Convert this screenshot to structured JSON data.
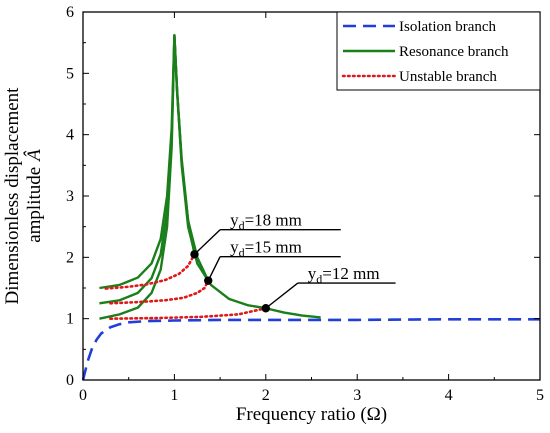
{
  "chart_data": {
    "type": "line",
    "title": "",
    "xlabel": "Frequency ratio (Ω)",
    "ylabel_line1": "Dimensionless displacement",
    "ylabel_line2": "amplitude",
    "ylabel_symbol": "Â",
    "xlim": [
      0,
      5
    ],
    "ylim": [
      0,
      6
    ],
    "xticks": [
      "0",
      "1",
      "2",
      "3",
      "4",
      "5"
    ],
    "yticks": [
      "0",
      "1",
      "2",
      "3",
      "4",
      "5",
      "6"
    ],
    "grid": false,
    "legend_position": "top-right",
    "legend": [
      {
        "label": "Isolation branch",
        "style": "dashed",
        "color": "#1f3fd8"
      },
      {
        "label": "Resonance branch",
        "style": "solid",
        "color": "#1a7f1a"
      },
      {
        "label": "Unstable branch",
        "style": "dotted",
        "color": "#e01818"
      }
    ],
    "series": [
      {
        "name": "Isolation branch",
        "style": "dashed",
        "color": "#1f3fd8",
        "x": [
          0.0,
          0.05,
          0.1,
          0.15,
          0.2,
          0.3,
          0.4,
          0.5,
          0.7,
          1.0,
          1.5,
          2.0,
          3.0,
          4.0,
          5.0
        ],
        "y": [
          0.0,
          0.3,
          0.52,
          0.66,
          0.76,
          0.86,
          0.91,
          0.94,
          0.96,
          0.97,
          0.98,
          0.98,
          0.98,
          0.99,
          0.99
        ]
      },
      {
        "name": "Resonance branch",
        "style": "solid",
        "color": "#1a7f1a",
        "x": [
          0.18,
          0.4,
          0.6,
          0.75,
          0.85,
          0.92,
          0.97,
          1.0,
          1.03,
          1.08,
          1.15,
          1.25,
          1.4,
          1.6,
          1.8,
          2.0,
          2.2,
          2.4,
          2.6
        ],
        "y": [
          1.0,
          1.07,
          1.18,
          1.42,
          1.8,
          2.5,
          3.8,
          5.62,
          4.7,
          3.5,
          2.5,
          1.9,
          1.55,
          1.32,
          1.22,
          1.17,
          1.1,
          1.05,
          1.02
        ]
      },
      {
        "name": "Resonance branch (y_d = 15 mm)",
        "style": "solid",
        "color": "#1a7f1a",
        "x": [
          0.18,
          0.4,
          0.6,
          0.75,
          0.85,
          0.92,
          0.97,
          1.0,
          1.03,
          1.08,
          1.15,
          1.25,
          1.37
        ],
        "y": [
          1.25,
          1.3,
          1.42,
          1.66,
          2.05,
          2.75,
          3.9,
          5.62,
          4.7,
          3.55,
          2.6,
          2.0,
          1.62
        ]
      },
      {
        "name": "Resonance branch (y_d = 18 mm)",
        "style": "solid",
        "color": "#1a7f1a",
        "x": [
          0.18,
          0.4,
          0.6,
          0.75,
          0.85,
          0.92,
          0.97,
          1.0,
          1.03,
          1.08,
          1.15,
          1.22
        ],
        "y": [
          1.5,
          1.55,
          1.67,
          1.9,
          2.3,
          3.0,
          4.1,
          5.62,
          4.7,
          3.6,
          2.6,
          2.05
        ]
      },
      {
        "name": "Unstable branch (y_d = 18 mm)",
        "style": "dotted",
        "color": "#e01818",
        "x": [
          0.25,
          0.5,
          0.7,
          0.9,
          1.05,
          1.15,
          1.22
        ],
        "y": [
          1.49,
          1.52,
          1.56,
          1.63,
          1.73,
          1.86,
          2.05
        ]
      },
      {
        "name": "Unstable branch (y_d = 15 mm)",
        "style": "dotted",
        "color": "#e01818",
        "x": [
          0.3,
          0.6,
          0.9,
          1.1,
          1.25,
          1.33,
          1.37
        ],
        "y": [
          1.25,
          1.27,
          1.3,
          1.34,
          1.42,
          1.5,
          1.62
        ]
      },
      {
        "name": "Unstable branch (y_d = 12 mm)",
        "style": "dotted",
        "color": "#e01818",
        "x": [
          0.3,
          0.8,
          1.3,
          1.7,
          2.0
        ],
        "y": [
          1.0,
          1.01,
          1.03,
          1.07,
          1.17
        ]
      }
    ],
    "markers": [
      {
        "x": 1.22,
        "y": 2.05
      },
      {
        "x": 1.37,
        "y": 1.62
      },
      {
        "x": 2.0,
        "y": 1.17
      }
    ],
    "annotations": [
      {
        "base": "y",
        "sub": "d",
        "text": "=18 mm",
        "px": 1.22,
        "py": 2.05,
        "tx": 1.5,
        "ty": 2.45,
        "lx2": 2.82
      },
      {
        "base": "y",
        "sub": "d",
        "text": "=15 mm",
        "px": 1.37,
        "py": 1.62,
        "tx": 1.5,
        "ty": 2.01,
        "lx2": 2.82
      },
      {
        "base": "y",
        "sub": "d",
        "text": "=12 mm",
        "px": 2.0,
        "py": 1.17,
        "tx": 2.35,
        "ty": 1.58,
        "lx2": 3.42
      }
    ]
  }
}
